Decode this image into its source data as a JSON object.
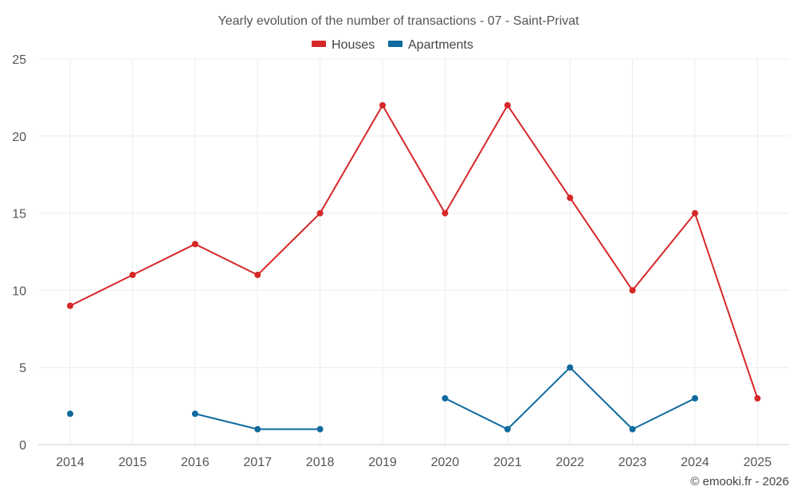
{
  "chart_data": {
    "type": "line",
    "title": "Yearly evolution of the number of transactions - 07 - Saint-Privat",
    "xlabel": "",
    "ylabel": "",
    "categories": [
      "2014",
      "2015",
      "2016",
      "2017",
      "2018",
      "2019",
      "2020",
      "2021",
      "2022",
      "2023",
      "2024",
      "2025"
    ],
    "ylim": [
      0,
      25
    ],
    "yticks": [
      0,
      5,
      10,
      15,
      20,
      25
    ],
    "grid": true,
    "legend_position": "top-center",
    "series": [
      {
        "name": "Houses",
        "color": "#d62728",
        "values": [
          9,
          11,
          13,
          11,
          15,
          22,
          15,
          22,
          16,
          10,
          15,
          3
        ]
      },
      {
        "name": "Apartments",
        "color": "#0f6a9e",
        "values": [
          2,
          null,
          2,
          1,
          1,
          null,
          3,
          1,
          5,
          1,
          3,
          null
        ]
      }
    ]
  },
  "credit": "© emooki.fr - 2026"
}
